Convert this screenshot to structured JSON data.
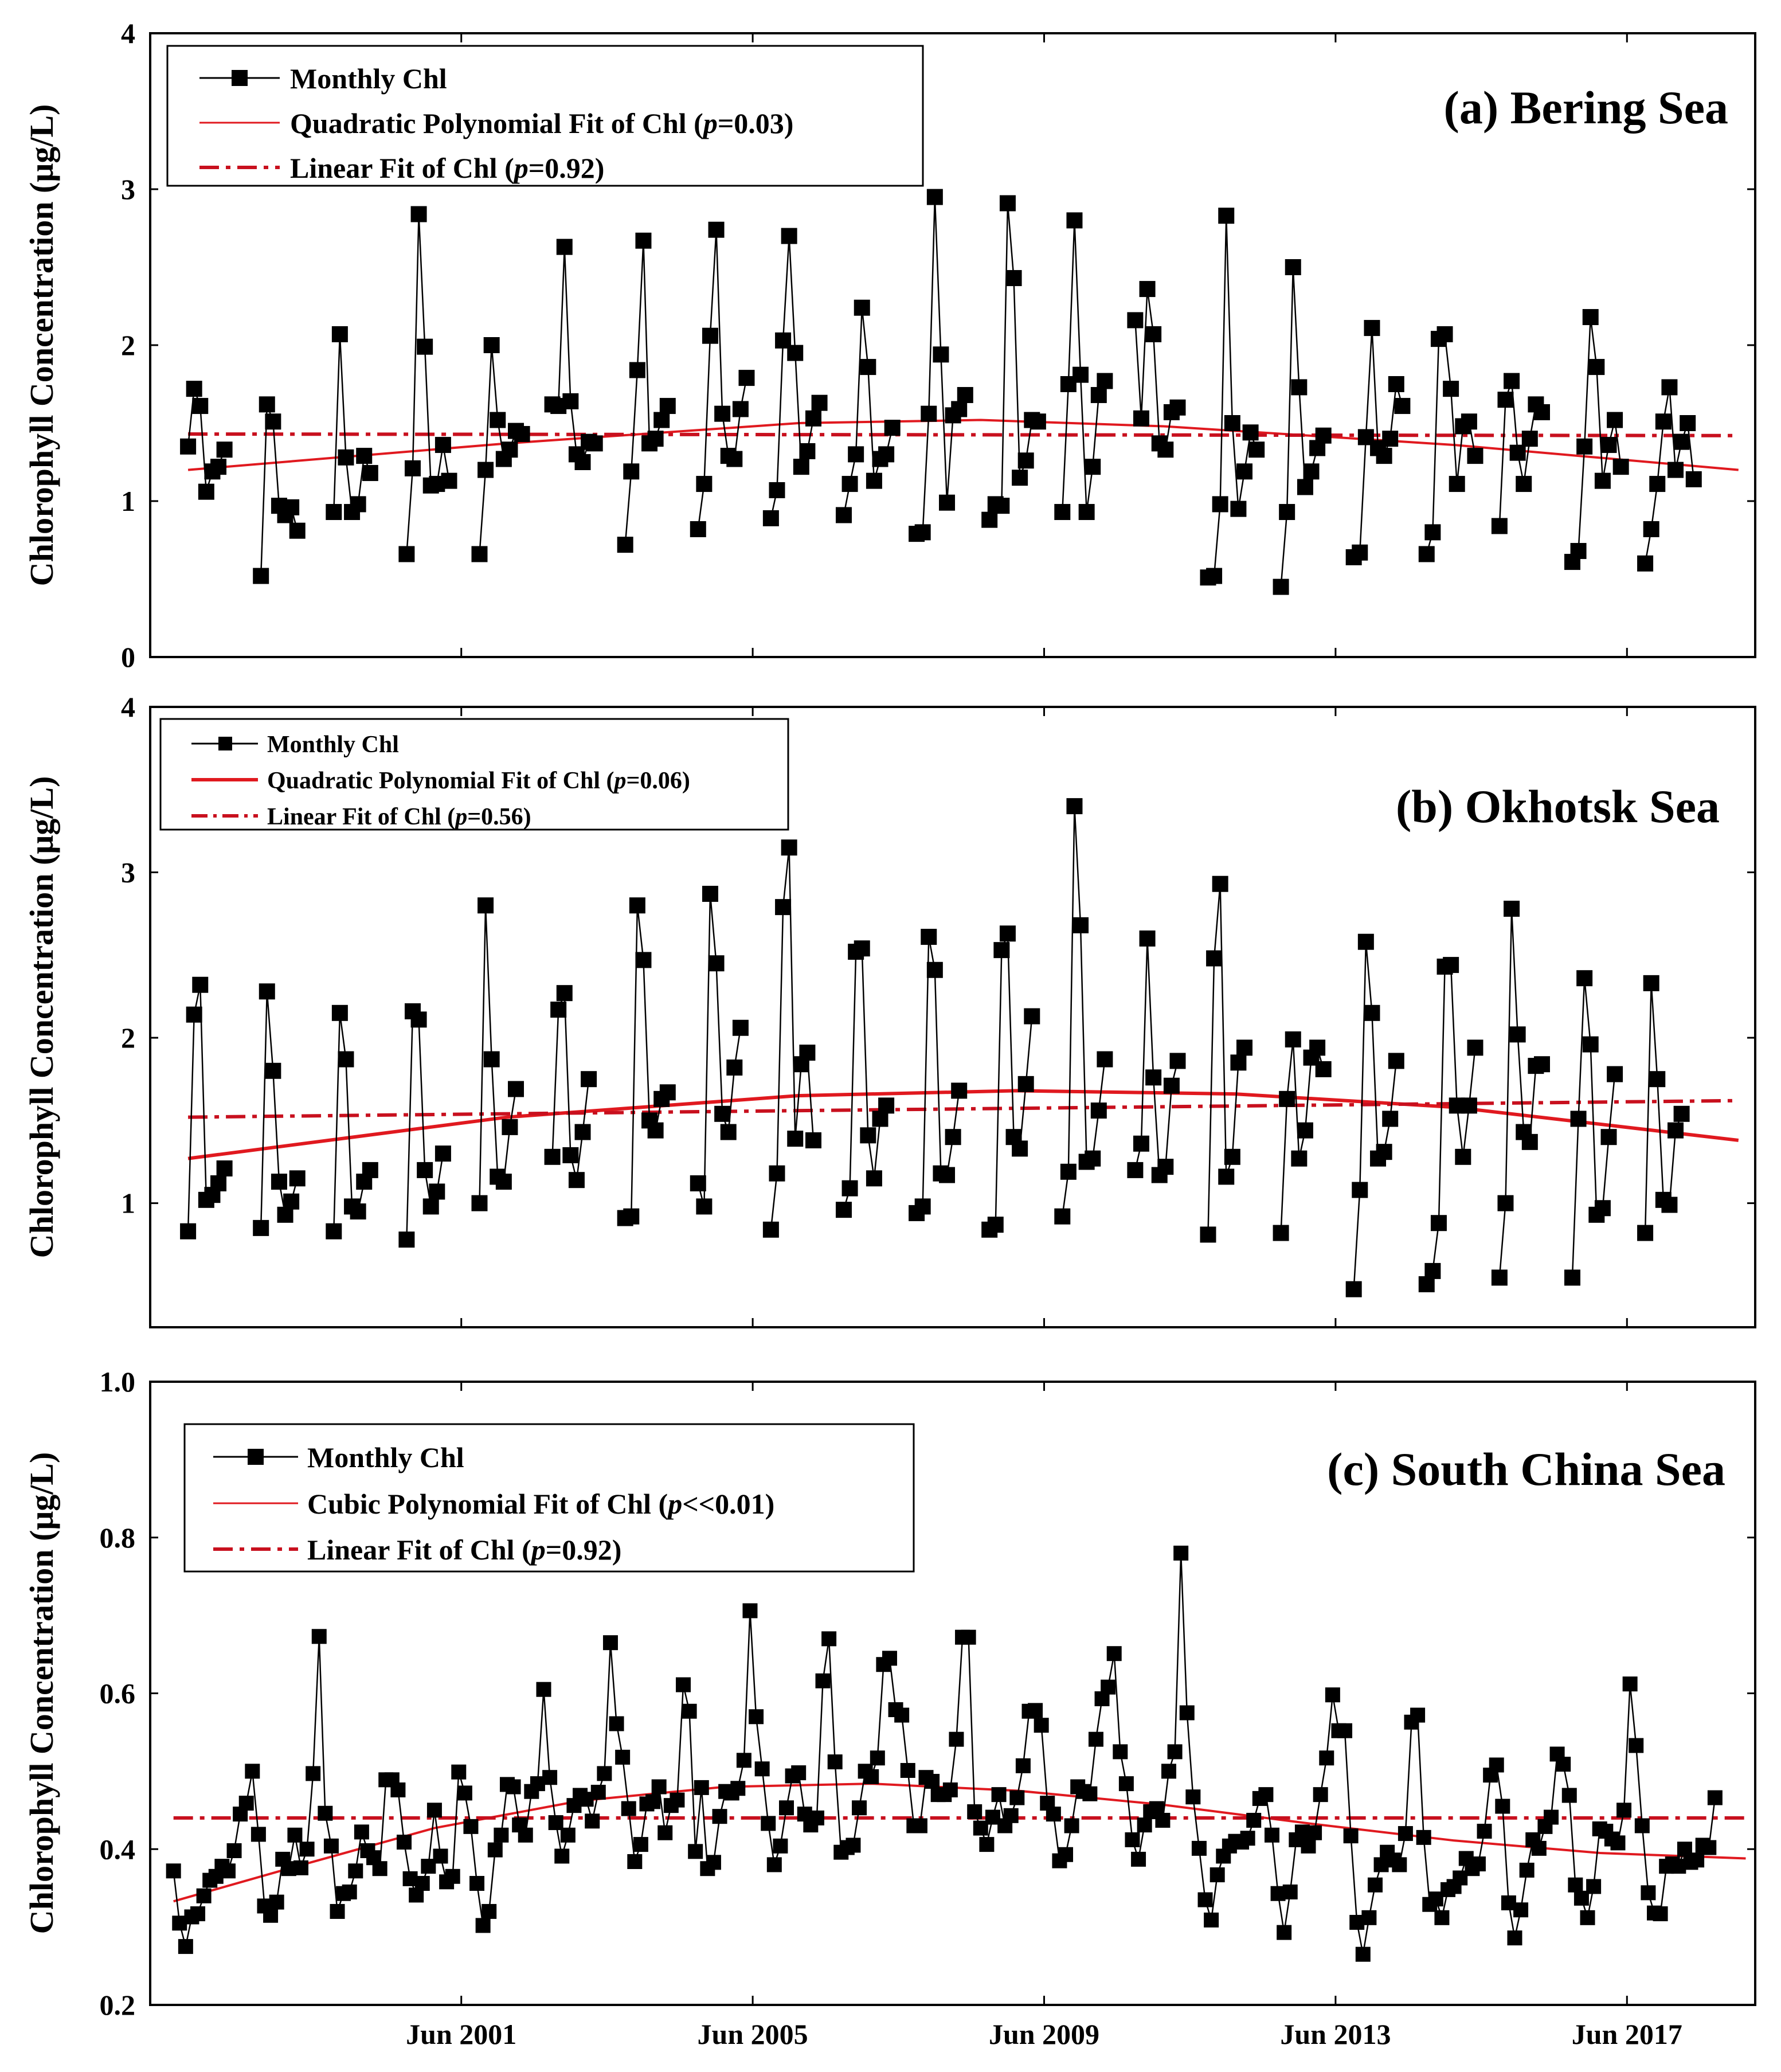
{
  "figure": {
    "ylabel": "Chlorophyll Concentration (μg/L)",
    "xtick_labels": [
      "Jun 2001",
      "Jun 2005",
      "Jun 2009",
      "Jun 2013",
      "Jun 2017"
    ],
    "colors": {
      "monthly": "#000000",
      "fit": "#e0191f",
      "linear": "#c8101e"
    }
  },
  "chart_data": [
    {
      "type": "line",
      "title": "(a) Bering Sea",
      "ylabel": "Chlorophyll Concentration (μg/L)",
      "ylim": [
        0,
        4
      ],
      "yticks": [
        0,
        1,
        2,
        3,
        4
      ],
      "xlim": [
        1997.1,
        2019.13
      ],
      "xticks": [
        2001.37,
        2005.37,
        2009.37,
        2013.37,
        2017.37
      ],
      "xtick_labels": [
        "Jun 2001",
        "Jun 2005",
        "Jun 2009",
        "Jun 2013",
        "Jun 2017"
      ],
      "legend": {
        "monthly": "Monthly Chl",
        "fit_prefix": "Quadratic Polynomial Fit of Chl (",
        "fit_p": "p",
        "fit_suffix": "=0.03)",
        "linear_prefix": "Linear Fit of Chl (",
        "linear_p": "p",
        "linear_suffix": "=0.92)"
      },
      "start_year": 1997.62,
      "step": 0.0833,
      "seasons": [
        [
          1.35,
          1.72,
          1.61,
          1.06,
          1.19,
          1.22,
          1.33
        ],
        [
          0.52,
          1.62,
          1.51,
          0.97,
          0.91,
          0.96,
          0.81
        ],
        [
          0.93,
          2.07,
          1.28,
          0.93,
          0.98,
          1.29,
          1.18
        ],
        [
          0.66,
          1.21,
          2.84,
          1.99,
          1.1,
          1.11,
          1.36,
          1.13
        ],
        [
          0.66,
          1.2,
          2.0,
          1.52,
          1.27,
          1.33,
          1.45,
          1.43
        ],
        [
          1.62,
          1.61,
          2.63,
          1.64,
          1.3,
          1.25,
          1.38,
          1.37
        ],
        [
          0.72,
          1.19,
          1.84,
          2.67,
          1.37,
          1.4,
          1.52,
          1.61
        ],
        [
          0.82,
          1.11,
          2.06,
          2.74,
          1.56,
          1.29,
          1.27,
          1.59,
          1.79
        ],
        [
          0.89,
          1.07,
          2.03,
          2.7,
          1.95,
          1.22,
          1.32,
          1.53,
          1.63
        ],
        [
          0.91,
          1.11,
          1.3,
          2.24,
          1.86,
          1.13,
          1.27,
          1.3,
          1.47
        ],
        [
          0.79,
          0.8,
          1.56,
          2.95,
          1.94,
          0.99,
          1.55,
          1.59,
          1.68
        ],
        [
          0.88,
          0.98,
          0.97,
          2.91,
          2.43,
          1.15,
          1.26,
          1.52,
          1.51
        ],
        [
          0.93,
          1.75,
          2.8,
          1.81,
          0.93,
          1.22,
          1.68,
          1.77
        ],
        [
          2.16,
          1.53,
          2.36,
          2.07,
          1.37,
          1.33,
          1.57,
          1.6
        ],
        [
          0.51,
          0.52,
          0.98,
          2.83,
          1.5,
          0.95,
          1.19,
          1.44,
          1.33
        ],
        [
          0.45,
          0.93,
          2.5,
          1.73,
          1.09,
          1.19,
          1.34,
          1.42
        ],
        [
          0.64,
          0.67,
          1.41,
          2.11,
          1.34,
          1.29,
          1.4,
          1.75,
          1.61
        ],
        [
          0.66,
          0.8,
          2.04,
          2.07,
          1.72,
          1.11,
          1.48,
          1.51,
          1.29
        ],
        [
          0.84,
          1.65,
          1.77,
          1.31,
          1.11,
          1.4,
          1.62,
          1.57
        ],
        [
          0.61,
          0.68,
          1.35,
          2.18,
          1.86,
          1.13,
          1.36,
          1.52,
          1.22
        ],
        [
          0.6,
          0.82,
          1.11,
          1.51,
          1.73,
          1.2,
          1.38,
          1.5,
          1.14
        ]
      ],
      "quadratic_fit": {
        "x": [
          1997.62,
          2002.0,
          2006.0,
          2008.5,
          2011.0,
          2015.0,
          2018.9
        ],
        "y": [
          1.2,
          1.37,
          1.5,
          1.52,
          1.48,
          1.36,
          1.2
        ]
      },
      "linear_fit": {
        "x": [
          1997.62,
          2018.9
        ],
        "y": [
          1.43,
          1.42
        ]
      }
    },
    {
      "type": "line",
      "title": "(b) Okhotsk Sea",
      "ylabel": "Chlorophyll Concentration (μg/L)",
      "ylim": [
        0.25,
        4
      ],
      "yticks": [
        1,
        2,
        3,
        4
      ],
      "xlim": [
        1997.1,
        2019.13
      ],
      "xticks": [
        2001.37,
        2005.37,
        2009.37,
        2013.37,
        2017.37
      ],
      "xtick_labels": [
        "Jun 2001",
        "Jun 2005",
        "Jun 2009",
        "Jun 2013",
        "Jun 2017"
      ],
      "legend": {
        "monthly": "Monthly Chl",
        "fit_prefix": "Quadratic Polynomial Fit of Chl (",
        "fit_p": "p",
        "fit_suffix": "=0.06)",
        "linear_prefix": "Linear Fit of Chl (",
        "linear_p": "p",
        "linear_suffix": "=0.56)"
      },
      "start_year": 1997.62,
      "step": 0.0833,
      "seasons": [
        [
          0.83,
          2.14,
          2.32,
          1.02,
          1.05,
          1.12,
          1.21
        ],
        [
          0.85,
          2.28,
          1.8,
          1.13,
          0.93,
          1.01,
          1.15
        ],
        [
          0.83,
          2.15,
          1.87,
          0.98,
          0.95,
          1.13,
          1.2
        ],
        [
          0.78,
          2.16,
          2.11,
          1.2,
          0.98,
          1.07,
          1.3
        ],
        [
          1.0,
          2.8,
          1.87,
          1.16,
          1.13,
          1.46,
          1.69
        ],
        [
          1.28,
          2.17,
          2.27,
          1.29,
          1.14,
          1.43,
          1.75
        ],
        [
          0.91,
          0.92,
          2.8,
          2.47,
          1.5,
          1.44,
          1.63,
          1.67
        ],
        [
          1.12,
          0.98,
          2.87,
          2.45,
          1.54,
          1.43,
          1.82,
          2.06
        ],
        [
          0.84,
          1.18,
          2.79,
          3.15,
          1.39,
          1.84,
          1.91,
          1.38
        ],
        [
          0.96,
          1.09,
          2.52,
          2.54,
          1.41,
          1.15,
          1.51,
          1.59
        ],
        [
          0.94,
          0.98,
          2.61,
          2.41,
          1.18,
          1.17,
          1.4,
          1.68
        ],
        [
          0.84,
          0.87,
          2.53,
          2.63,
          1.4,
          1.33,
          1.72,
          2.13
        ],
        [
          0.92,
          1.19,
          3.4,
          2.68,
          1.25,
          1.27,
          1.56,
          1.87
        ],
        [
          1.2,
          1.36,
          2.6,
          1.76,
          1.17,
          1.22,
          1.71,
          1.86
        ],
        [
          0.81,
          2.48,
          2.93,
          1.16,
          1.28,
          1.85,
          1.94
        ],
        [
          0.82,
          1.63,
          1.99,
          1.27,
          1.44,
          1.88,
          1.94,
          1.81
        ],
        [
          0.48,
          1.08,
          2.58,
          2.15,
          1.27,
          1.31,
          1.51,
          1.86
        ],
        [
          0.51,
          0.59,
          0.88,
          2.43,
          2.44,
          1.59,
          1.28,
          1.59,
          1.94
        ],
        [
          0.55,
          1.0,
          2.78,
          2.02,
          1.43,
          1.37,
          1.83,
          1.84
        ],
        [
          0.55,
          1.51,
          2.36,
          1.96,
          0.93,
          0.97,
          1.4,
          1.78
        ],
        [
          0.82,
          2.33,
          1.75,
          1.02,
          0.99,
          1.44,
          1.54
        ]
      ],
      "quadratic_fit": {
        "x": [
          1997.62,
          2002.0,
          2006.0,
          2009.0,
          2012.0,
          2015.0,
          2018.9
        ],
        "y": [
          1.27,
          1.52,
          1.65,
          1.68,
          1.66,
          1.58,
          1.38
        ]
      },
      "linear_fit": {
        "x": [
          1997.62,
          2018.9
        ],
        "y": [
          1.52,
          1.62
        ]
      }
    },
    {
      "type": "line",
      "title": "(c) South China Sea",
      "ylabel": "Chlorophyll Concentration (μg/L)",
      "ylim": [
        0.2,
        1.0
      ],
      "yticks": [
        0.2,
        0.4,
        0.6,
        0.8,
        1.0
      ],
      "ytick_labels": [
        "0.2",
        "0.4",
        "0.6",
        "0.8",
        "1.0"
      ],
      "xlim": [
        1997.1,
        2019.13
      ],
      "xticks": [
        2001.37,
        2005.37,
        2009.37,
        2013.37,
        2017.37
      ],
      "xtick_labels": [
        "Jun 2001",
        "Jun 2005",
        "Jun 2009",
        "Jun 2013",
        "Jun 2017"
      ],
      "legend": {
        "monthly": "Monthly Chl",
        "fit_prefix": "Cubic Polynomial Fit of Chl (",
        "fit_p": "p",
        "fit_suffix": "<<0.01)",
        "linear_prefix": "Linear Fit of Chl (",
        "linear_p": "p",
        "linear_suffix": "=0.92)"
      },
      "x_start": 1997.42,
      "step": 0.0833,
      "values": [
        0.372,
        0.305,
        0.275,
        0.313,
        0.317,
        0.34,
        0.36,
        0.365,
        0.378,
        0.372,
        0.398,
        0.445,
        0.459,
        0.5,
        0.419,
        0.327,
        0.315,
        0.332,
        0.387,
        0.375,
        0.418,
        0.376,
        0.4,
        0.497,
        0.673,
        0.446,
        0.404,
        0.32,
        0.343,
        0.345,
        0.372,
        0.422,
        0.398,
        0.389,
        0.375,
        0.489,
        0.489,
        0.476,
        0.409,
        0.362,
        0.341,
        0.356,
        0.378,
        0.45,
        0.391,
        0.358,
        0.365,
        0.499,
        0.472,
        0.429,
        0.356,
        0.302,
        0.32,
        0.399,
        0.418,
        0.483,
        0.48,
        0.431,
        0.418,
        0.474,
        0.484,
        0.605,
        0.492,
        0.434,
        0.391,
        0.418,
        0.456,
        0.469,
        0.464,
        0.436,
        0.473,
        0.497,
        0.665,
        0.561,
        0.518,
        0.452,
        0.384,
        0.406,
        0.458,
        0.461,
        0.48,
        0.421,
        0.456,
        0.463,
        0.611,
        0.577,
        0.397,
        0.479,
        0.375,
        0.383,
        0.442,
        0.474,
        0.472,
        0.478,
        0.514,
        0.706,
        0.57,
        0.503,
        0.433,
        0.38,
        0.404,
        0.453,
        0.494,
        0.498,
        0.445,
        0.431,
        0.44,
        0.616,
        0.67,
        0.512,
        0.396,
        0.402,
        0.405,
        0.453,
        0.5,
        0.493,
        0.517,
        0.637,
        0.645,
        0.579,
        0.572,
        0.501,
        0.43,
        0.43,
        0.492,
        0.487,
        0.47,
        0.47,
        0.476,
        0.541,
        0.672,
        0.672,
        0.448,
        0.427,
        0.406,
        0.441,
        0.47,
        0.43,
        0.443,
        0.466,
        0.507,
        0.577,
        0.578,
        0.559,
        0.459,
        0.445,
        0.385,
        0.393,
        0.43,
        0.48,
        0.474,
        0.471,
        0.541,
        0.593,
        0.608,
        0.651,
        0.525,
        0.484,
        0.412,
        0.387,
        0.431,
        0.448,
        0.452,
        0.437,
        0.5,
        0.525,
        0.78,
        0.575,
        0.467,
        0.401,
        0.335,
        0.309,
        0.367,
        0.391,
        0.404,
        0.41,
        0.409,
        0.414,
        0.437,
        0.465,
        0.47,
        0.418,
        0.343,
        0.293,
        0.345,
        0.412,
        0.422,
        0.404,
        0.421,
        0.47,
        0.517,
        0.598,
        0.552,
        0.552,
        0.417,
        0.306,
        0.265,
        0.312,
        0.354,
        0.38,
        0.396,
        0.386,
        0.38,
        0.42,
        0.563,
        0.572,
        0.415,
        0.329,
        0.336,
        0.312,
        0.348,
        0.352,
        0.363,
        0.388,
        0.375,
        0.381,
        0.423,
        0.495,
        0.508,
        0.455,
        0.331,
        0.286,
        0.322,
        0.373,
        0.412,
        0.401,
        0.429,
        0.441,
        0.522,
        0.509,
        0.469,
        0.354,
        0.337,
        0.312,
        0.352,
        0.426,
        0.423,
        0.413,
        0.408,
        0.45,
        0.612,
        0.533,
        0.43,
        0.344,
        0.318,
        0.317,
        0.378,
        0.381,
        0.378,
        0.4,
        0.383,
        0.386,
        0.405,
        0.402,
        0.466
      ],
      "cubic_fit": {
        "x": [
          1997.42,
          1999.0,
          2001.0,
          2003.0,
          2005.0,
          2007.0,
          2009.0,
          2011.0,
          2013.0,
          2015.0,
          2017.0,
          2019.0
        ],
        "y": [
          0.333,
          0.375,
          0.427,
          0.462,
          0.48,
          0.484,
          0.475,
          0.457,
          0.433,
          0.411,
          0.395,
          0.388
        ]
      },
      "linear_fit": {
        "x": [
          1997.42,
          2019.0
        ],
        "y": [
          0.44,
          0.44
        ]
      }
    }
  ]
}
